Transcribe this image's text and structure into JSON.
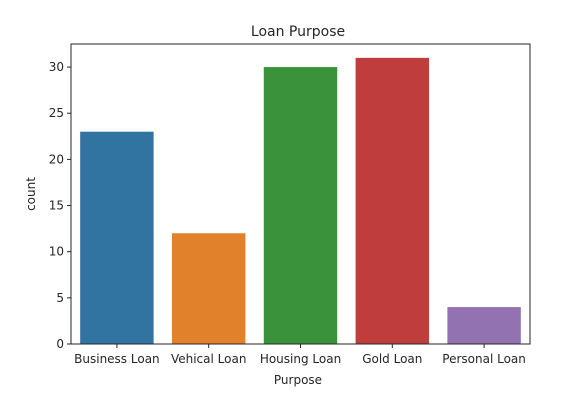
{
  "chart_data": {
    "type": "bar",
    "title": "Loan Purpose",
    "xlabel": "Purpose",
    "ylabel": "count",
    "categories": [
      "Business Loan",
      "Vehical Loan",
      "Housing Loan",
      "Gold Loan",
      "Personal Loan"
    ],
    "values": [
      23,
      12,
      30,
      31,
      4
    ],
    "colors": [
      "#3274a1",
      "#e1812c",
      "#3a923a",
      "#c03d3e",
      "#9372b2"
    ],
    "ylim": [
      0,
      32.5
    ],
    "yticks": [
      0,
      5,
      10,
      15,
      20,
      25,
      30
    ],
    "grid": false
  }
}
